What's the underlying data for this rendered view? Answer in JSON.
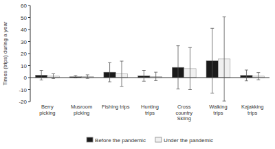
{
  "chart_data": {
    "type": "bar",
    "categories": [
      "Berry\npicking",
      "Musroom\npicking",
      "Fishing trips",
      "Hunting\ntrips",
      "Cross\ncountry\nSkiing",
      "Walking\ntrips",
      "Kajakking\ntrips"
    ],
    "ylabel": "Times (trips) during a year",
    "series": [
      {
        "name": "Before the pandemic",
        "color": "#1a1a1a",
        "values": [
          2.0,
          0.7,
          4.5,
          1.5,
          8.5,
          14.0,
          1.8
        ],
        "errors": [
          4.0,
          1.0,
          8.0,
          4.5,
          18.0,
          27.0,
          4.5
        ]
      },
      {
        "name": "Under the pandemic",
        "color": "#f0f0f0",
        "values": [
          1.2,
          0.8,
          3.2,
          1.0,
          7.5,
          15.5,
          1.2
        ],
        "errors": [
          2.0,
          1.5,
          10.5,
          3.5,
          17.5,
          35.0,
          3.0
        ]
      }
    ],
    "ylim": [
      -20,
      60
    ],
    "yticks": [
      -20,
      -10,
      0,
      10,
      20,
      30,
      40,
      50,
      60
    ],
    "grid": false,
    "legend": "bottom"
  }
}
